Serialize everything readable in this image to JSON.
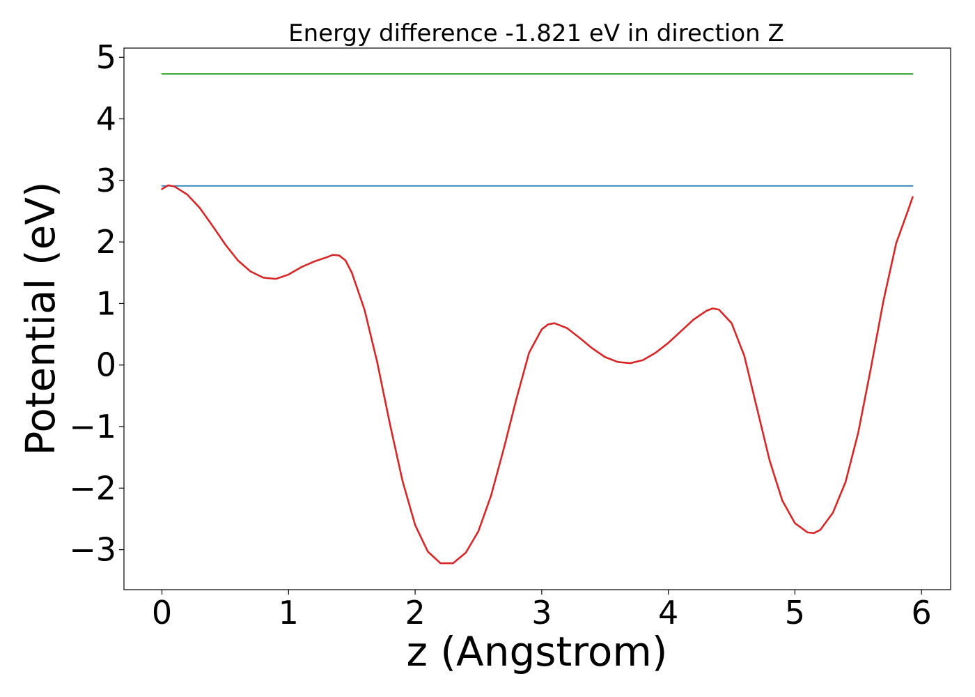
{
  "chart_data": {
    "type": "line",
    "title": "Energy difference -1.821 eV in direction Z",
    "xlabel": "z (Angstrom)",
    "ylabel": "Potential (eV)",
    "xlim": [
      -0.3,
      6.23
    ],
    "ylim": [
      -3.65,
      5.15
    ],
    "x_ticks": [
      0,
      1,
      2,
      3,
      4,
      5,
      6
    ],
    "x_tick_labels": [
      "0",
      "1",
      "2",
      "3",
      "4",
      "5",
      "6"
    ],
    "y_ticks": [
      5,
      4,
      3,
      2,
      1,
      0,
      -1,
      -2,
      -3
    ],
    "y_tick_labels": [
      "5",
      "4",
      "3",
      "2",
      "1",
      "0",
      "−1",
      "−2",
      "−3"
    ],
    "grid": false,
    "series": [
      {
        "color": "#2ca02c",
        "x": [
          0,
          5.93
        ],
        "y": [
          4.73,
          4.73
        ]
      },
      {
        "color": "#1f77b4",
        "x": [
          0,
          5.93
        ],
        "y": [
          2.91,
          2.91
        ]
      },
      {
        "color": "#d62728",
        "x": [
          0,
          0.05,
          0.1,
          0.2,
          0.3,
          0.4,
          0.5,
          0.6,
          0.7,
          0.8,
          0.9,
          1.0,
          1.1,
          1.2,
          1.3,
          1.35,
          1.4,
          1.45,
          1.5,
          1.6,
          1.7,
          1.8,
          1.9,
          2.0,
          2.1,
          2.2,
          2.3,
          2.4,
          2.5,
          2.6,
          2.7,
          2.8,
          2.9,
          3.0,
          3.05,
          3.1,
          3.2,
          3.3,
          3.4,
          3.5,
          3.6,
          3.7,
          3.8,
          3.9,
          4.0,
          4.1,
          4.2,
          4.3,
          4.35,
          4.4,
          4.5,
          4.6,
          4.7,
          4.8,
          4.9,
          5.0,
          5.1,
          5.15,
          5.2,
          5.3,
          5.4,
          5.5,
          5.6,
          5.7,
          5.8,
          5.9,
          5.93
        ],
        "y": [
          2.86,
          2.92,
          2.9,
          2.77,
          2.55,
          2.26,
          1.96,
          1.7,
          1.52,
          1.42,
          1.4,
          1.47,
          1.59,
          1.68,
          1.75,
          1.79,
          1.78,
          1.7,
          1.5,
          0.9,
          0.05,
          -0.95,
          -1.88,
          -2.6,
          -3.03,
          -3.22,
          -3.22,
          -3.05,
          -2.7,
          -2.12,
          -1.36,
          -0.55,
          0.2,
          0.58,
          0.66,
          0.68,
          0.6,
          0.44,
          0.27,
          0.13,
          0.05,
          0.03,
          0.08,
          0.2,
          0.36,
          0.55,
          0.74,
          0.88,
          0.92,
          0.9,
          0.68,
          0.15,
          -0.7,
          -1.55,
          -2.2,
          -2.57,
          -2.72,
          -2.73,
          -2.68,
          -2.4,
          -1.9,
          -1.1,
          -0.05,
          1.05,
          1.98,
          2.55,
          2.73
        ]
      }
    ]
  }
}
